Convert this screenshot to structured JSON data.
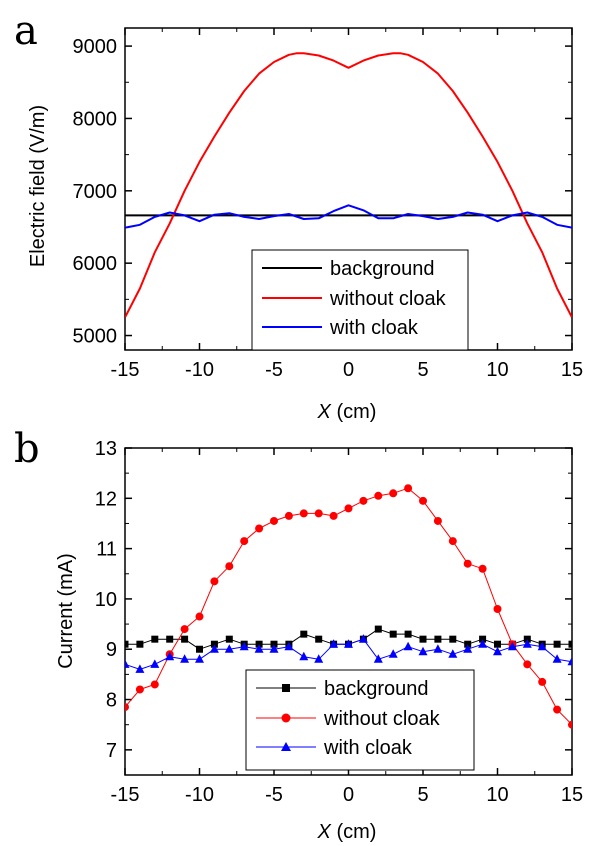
{
  "chart_data": [
    {
      "panel_label": "a",
      "type": "line",
      "xlabel": "X (cm)",
      "xlabel_italic": "X",
      "xlabel_rest": " (cm)",
      "ylabel": "Electric field (V/m)",
      "xlim": [
        -15,
        15
      ],
      "ylim": [
        4800,
        9250
      ],
      "xticks": [
        -15,
        -10,
        -5,
        0,
        5,
        10,
        15
      ],
      "yticks": [
        5000,
        6000,
        7000,
        8000,
        9000
      ],
      "legend_position": "lower-center",
      "markers": false,
      "series": [
        {
          "name": "background",
          "color": "#000000",
          "x": [
            -15,
            15
          ],
          "y": [
            6660,
            6660
          ]
        },
        {
          "name": "without cloak",
          "color": "#ff0000",
          "x": [
            -15,
            -14,
            -13,
            -12,
            -11,
            -10,
            -9,
            -8,
            -7,
            -6,
            -5,
            -4,
            -3.5,
            -3,
            -2,
            -1,
            0,
            1,
            2,
            3,
            3.5,
            4,
            5,
            6,
            7,
            8,
            9,
            10,
            11,
            12,
            13,
            14,
            15
          ],
          "y": [
            5250,
            5650,
            6150,
            6550,
            7000,
            7400,
            7750,
            8080,
            8380,
            8620,
            8780,
            8880,
            8900,
            8900,
            8870,
            8800,
            8700,
            8800,
            8870,
            8900,
            8900,
            8880,
            8780,
            8620,
            8380,
            8080,
            7750,
            7400,
            7000,
            6550,
            6150,
            5650,
            5250
          ]
        },
        {
          "name": "with cloak",
          "color": "#0000ff",
          "x": [
            -15,
            -14,
            -13,
            -12,
            -11,
            -10,
            -9,
            -8,
            -7,
            -6,
            -5,
            -4,
            -3,
            -2,
            -1,
            0,
            1,
            2,
            3,
            4,
            5,
            6,
            7,
            8,
            9,
            10,
            11,
            12,
            13,
            14,
            15
          ],
          "y": [
            6490,
            6530,
            6640,
            6700,
            6660,
            6580,
            6670,
            6690,
            6640,
            6610,
            6650,
            6680,
            6610,
            6620,
            6720,
            6800,
            6730,
            6620,
            6620,
            6680,
            6650,
            6610,
            6640,
            6700,
            6670,
            6580,
            6660,
            6700,
            6640,
            6530,
            6490
          ]
        }
      ]
    },
    {
      "panel_label": "b",
      "type": "line",
      "xlabel": "X (cm)",
      "xlabel_italic": "X",
      "xlabel_rest": " (cm)",
      "ylabel": "Current (mA)",
      "xlim": [
        -15,
        15
      ],
      "ylim": [
        6.5,
        13
      ],
      "xticks": [
        -15,
        -10,
        -5,
        0,
        5,
        10,
        15
      ],
      "yticks": [
        7,
        8,
        9,
        10,
        11,
        12,
        13
      ],
      "legend_position": "lower-right",
      "markers": true,
      "series": [
        {
          "name": "background",
          "color": "#000000",
          "marker": "square",
          "x": [
            -15,
            -14,
            -13,
            -12,
            -11,
            -10,
            -9,
            -8,
            -7,
            -6,
            -5,
            -4,
            -3,
            -2,
            -1,
            0,
            1,
            2,
            3,
            4,
            5,
            6,
            7,
            8,
            9,
            10,
            11,
            12,
            13,
            14,
            15
          ],
          "y": [
            9.1,
            9.1,
            9.2,
            9.2,
            9.2,
            9.0,
            9.1,
            9.2,
            9.1,
            9.1,
            9.1,
            9.1,
            9.3,
            9.2,
            9.1,
            9.1,
            9.2,
            9.4,
            9.3,
            9.3,
            9.2,
            9.2,
            9.2,
            9.1,
            9.2,
            9.1,
            9.1,
            9.2,
            9.1,
            9.1,
            9.1
          ]
        },
        {
          "name": "without cloak",
          "color": "#ff0000",
          "marker": "circle",
          "x": [
            -15,
            -14,
            -13,
            -12,
            -11,
            -10,
            -9,
            -8,
            -7,
            -6,
            -5,
            -4,
            -3,
            -2,
            -1,
            0,
            1,
            2,
            3,
            4,
            5,
            6,
            7,
            8,
            9,
            10,
            11,
            12,
            13,
            14,
            15
          ],
          "y": [
            7.85,
            8.2,
            8.3,
            8.9,
            9.4,
            9.65,
            10.35,
            10.65,
            11.15,
            11.4,
            11.55,
            11.65,
            11.7,
            11.7,
            11.65,
            11.8,
            11.95,
            12.05,
            12.1,
            12.2,
            11.95,
            11.55,
            11.15,
            10.7,
            10.6,
            9.8,
            9.1,
            8.7,
            8.35,
            7.8,
            7.5
          ]
        },
        {
          "name": "with cloak",
          "color": "#0000ff",
          "marker": "triangle",
          "x": [
            -15,
            -14,
            -13,
            -12,
            -11,
            -10,
            -9,
            -8,
            -7,
            -6,
            -5,
            -4,
            -3,
            -2,
            -1,
            0,
            1,
            2,
            3,
            4,
            5,
            6,
            7,
            8,
            9,
            10,
            11,
            12,
            13,
            14,
            15
          ],
          "y": [
            8.7,
            8.6,
            8.7,
            8.85,
            8.8,
            8.8,
            9.0,
            9.0,
            9.05,
            9.0,
            9.0,
            9.05,
            8.85,
            8.8,
            9.1,
            9.1,
            9.2,
            8.8,
            8.9,
            9.05,
            8.95,
            9.0,
            8.9,
            9.0,
            9.1,
            8.95,
            9.05,
            9.1,
            9.05,
            8.8,
            8.75
          ]
        }
      ]
    }
  ]
}
